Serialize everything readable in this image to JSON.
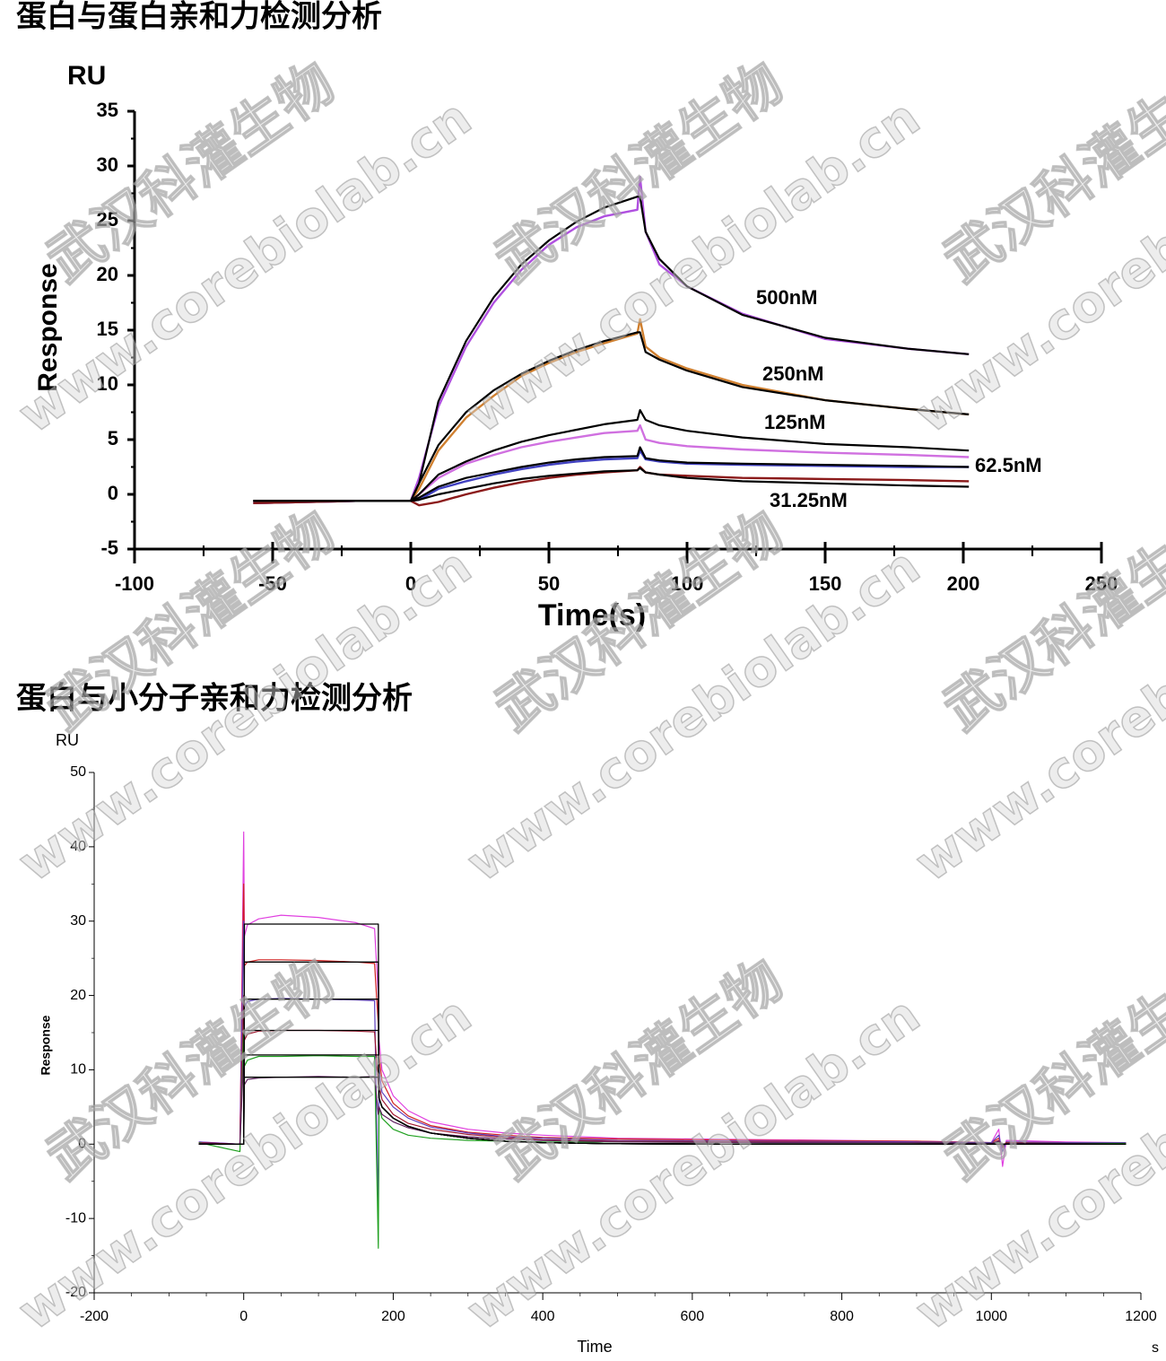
{
  "chart_data": [
    {
      "type": "line",
      "title": "蛋白与蛋白亲和力检测分析",
      "y_unit": "RU",
      "ylabel": "Response",
      "xlabel": "Time(s)",
      "xlim": [
        -100,
        250
      ],
      "xticks": [
        -100,
        -50,
        0,
        50,
        100,
        150,
        200,
        250
      ],
      "ylim": [
        -5,
        35
      ],
      "yticks": [
        -5,
        0,
        5,
        10,
        15,
        20,
        25,
        30,
        35
      ],
      "fit_color": "#000000",
      "x": [
        -57,
        -20,
        0,
        3,
        10,
        20,
        30,
        40,
        50,
        60,
        70,
        82,
        83,
        85,
        90,
        100,
        120,
        150,
        180,
        202
      ],
      "series": [
        {
          "name": "500nM",
          "color": "#b050e0",
          "values": [
            -0.8,
            -0.6,
            -0.6,
            1.5,
            8,
            13.5,
            17.5,
            20.5,
            22.8,
            24.4,
            25.4,
            26,
            29,
            24,
            21,
            19,
            16.5,
            14.2,
            13.3,
            12.8
          ],
          "fit_values": [
            -0.6,
            -0.6,
            -0.6,
            1,
            8.5,
            14,
            18,
            21,
            23.2,
            24.9,
            26.2,
            27.2,
            27.2,
            24,
            21.5,
            19,
            16.4,
            14.3,
            13.3,
            12.8
          ]
        },
        {
          "name": "250nM",
          "color": "#d08030",
          "values": [
            -0.8,
            -0.6,
            -0.6,
            0.5,
            4,
            7,
            9,
            10.8,
            12,
            13,
            13.8,
            14.7,
            16,
            13.5,
            12.5,
            11.5,
            10,
            8.6,
            7.8,
            7.3
          ],
          "fit_values": [
            -0.6,
            -0.6,
            -0.6,
            1,
            4.5,
            7.5,
            9.5,
            11,
            12.2,
            13.2,
            14,
            14.8,
            14.8,
            13,
            12.3,
            11.3,
            9.8,
            8.6,
            7.8,
            7.3
          ]
        },
        {
          "name": "125nM",
          "color": "#d070e0",
          "values": [
            -0.8,
            -0.6,
            -0.6,
            0,
            1.5,
            2.8,
            3.6,
            4.3,
            4.8,
            5.2,
            5.6,
            5.8,
            6.3,
            5,
            4.7,
            4.4,
            4.1,
            3.8,
            3.6,
            3.4
          ],
          "fit_values": [
            -0.6,
            -0.6,
            -0.6,
            0,
            1.8,
            3,
            4,
            4.8,
            5.4,
            5.9,
            6.4,
            6.8,
            7.7,
            6.8,
            6.3,
            5.8,
            5.2,
            4.6,
            4.3,
            4.0
          ]
        },
        {
          "name": "62.5nM",
          "color": "#4040c0",
          "values": [
            -0.8,
            -0.6,
            -0.6,
            -0.5,
            0.5,
            1.2,
            1.8,
            2.3,
            2.7,
            3,
            3.2,
            3.3,
            4,
            3.2,
            3,
            2.8,
            2.7,
            2.6,
            2.5,
            2.5
          ],
          "fit_values": [
            -0.6,
            -0.6,
            -0.6,
            -0.3,
            0.7,
            1.5,
            2,
            2.5,
            2.9,
            3.2,
            3.4,
            3.5,
            4.3,
            3.3,
            3.1,
            2.9,
            2.8,
            2.7,
            2.6,
            2.5
          ]
        },
        {
          "name": "31.25nM",
          "color": "#8b1a1a",
          "values": [
            -0.8,
            -0.6,
            -0.6,
            -1,
            -0.7,
            0,
            0.6,
            1.1,
            1.5,
            1.8,
            2,
            2.2,
            2.5,
            2,
            1.8,
            1.7,
            1.5,
            1.4,
            1.3,
            1.2
          ],
          "fit_values": [
            -0.6,
            -0.6,
            -0.6,
            -0.5,
            0,
            0.5,
            1,
            1.4,
            1.7,
            1.9,
            2.1,
            2.2,
            2.4,
            2,
            1.8,
            1.5,
            1.2,
            1,
            0.8,
            0.7
          ]
        }
      ]
    },
    {
      "type": "line",
      "title": "蛋白与小分子亲和力检测分析",
      "y_unit": "RU",
      "ylabel": "Response",
      "xlabel": "Time",
      "x_unit": "s",
      "xlim": [
        -200,
        1200
      ],
      "xticks": [
        -200,
        0,
        200,
        400,
        600,
        800,
        1000,
        1200
      ],
      "ylim": [
        -20,
        50
      ],
      "yticks": [
        -20,
        -10,
        0,
        10,
        20,
        30,
        40,
        50
      ],
      "fit_color": "#000000",
      "x": [
        -60,
        -5,
        0,
        1,
        5,
        20,
        50,
        100,
        150,
        175,
        180,
        181,
        185,
        200,
        220,
        250,
        300,
        350,
        400,
        500,
        700,
        900,
        1000,
        1010,
        1015,
        1020,
        1100,
        1180
      ],
      "series": [
        {
          "color": "#e040e0",
          "values": [
            0.3,
            0,
            42,
            28,
            29.5,
            30.3,
            30.8,
            30.5,
            29.8,
            29,
            20,
            14,
            10,
            6.5,
            4.5,
            3,
            2,
            1.5,
            1.2,
            0.8,
            0.6,
            0.4,
            0.2,
            2,
            -3,
            0.5,
            0.3,
            0.2
          ],
          "fit_values": [
            0,
            0,
            0,
            29.6,
            29.6,
            29.6,
            29.6,
            29.6,
            29.6,
            29.6,
            29.6,
            6.2,
            5,
            3.5,
            2.4,
            1.5,
            0.8,
            0.4,
            0.2,
            0.05,
            0,
            0,
            0,
            0,
            0,
            0,
            0,
            0
          ]
        },
        {
          "color": "#d02020",
          "values": [
            0.2,
            0,
            35,
            24,
            24.5,
            24.8,
            24.8,
            24.7,
            24.5,
            24.3,
            16,
            12,
            8.5,
            5.5,
            3.8,
            2.5,
            1.6,
            1.2,
            0.9,
            0.7,
            0.5,
            0.4,
            0.2,
            0.8,
            -0.5,
            0.3,
            0.2,
            0.2
          ],
          "fit_values": [
            0,
            0,
            0,
            24.5,
            24.5,
            24.5,
            24.5,
            24.5,
            24.5,
            24.5,
            24.5,
            6.2,
            5,
            3.5,
            2.4,
            1.5,
            0.8,
            0.4,
            0.2,
            0.05,
            0,
            0,
            0,
            0,
            0,
            0,
            0,
            0
          ]
        },
        {
          "color": "#6040c0",
          "values": [
            0.3,
            0,
            30,
            18.5,
            19.2,
            19.5,
            19.6,
            19.5,
            19.4,
            19.3,
            -10,
            10,
            7,
            5,
            3.5,
            2.3,
            1.5,
            1,
            0.8,
            0.5,
            0.4,
            0.3,
            0.2,
            1.2,
            -1,
            0.3,
            0.2,
            0.2
          ],
          "fit_values": [
            0,
            0,
            0,
            19.5,
            19.5,
            19.5,
            19.5,
            19.5,
            19.5,
            19.5,
            19.5,
            6.2,
            5,
            3.5,
            2.4,
            1.5,
            0.8,
            0.4,
            0.2,
            0.05,
            0,
            0,
            0,
            0,
            0,
            0,
            0,
            0
          ]
        },
        {
          "color": "#a01830",
          "values": [
            0.2,
            0,
            20,
            14,
            14.8,
            15.2,
            15.3,
            15.3,
            15.2,
            15.1,
            8,
            8,
            6,
            4,
            2.8,
            2,
            1.3,
            0.9,
            0.6,
            0.4,
            0.3,
            0.2,
            0.1,
            0.5,
            -0.3,
            0.2,
            0.1,
            0.1
          ],
          "fit_values": [
            0,
            0,
            0,
            15.3,
            15.3,
            15.3,
            15.3,
            15.3,
            15.3,
            15.3,
            15.3,
            6.2,
            5,
            3.5,
            2.4,
            1.5,
            0.8,
            0.4,
            0.2,
            0.05,
            0,
            0,
            0,
            0,
            0,
            0,
            0,
            0
          ]
        },
        {
          "color": "#20a020",
          "values": [
            0.2,
            -1,
            15,
            10.5,
            11.3,
            11.8,
            11.8,
            11.9,
            11.8,
            11.8,
            -14,
            5,
            3.5,
            2,
            1.2,
            0.8,
            0.5,
            0.4,
            0.3,
            0.3,
            0.2,
            0.2,
            0.1,
            0.3,
            -0.2,
            0.1,
            0.1,
            0.1
          ],
          "fit_values": [
            0,
            0,
            0,
            12,
            12,
            12,
            12,
            12,
            12,
            12,
            12,
            6.2,
            5,
            3.5,
            2.4,
            1.5,
            0.8,
            0.4,
            0.2,
            0.05,
            0,
            0,
            0,
            0,
            0,
            0,
            0,
            0
          ]
        },
        {
          "color": "#602060",
          "values": [
            0.1,
            0,
            12,
            8,
            8.7,
            8.9,
            9,
            9.1,
            9,
            9.1,
            4,
            5,
            4,
            3,
            2.2,
            1.5,
            1,
            0.7,
            0.5,
            0.3,
            0.2,
            0.2,
            0.1,
            0.4,
            -0.2,
            0.1,
            0.1,
            0
          ],
          "fit_values": [
            0,
            0,
            0,
            9,
            9,
            9,
            9,
            9,
            9,
            9,
            9,
            6.2,
            5,
            3.5,
            2.4,
            1.5,
            0.8,
            0.4,
            0.2,
            0.05,
            0,
            0,
            0,
            0,
            0,
            0,
            0,
            0
          ]
        }
      ]
    }
  ],
  "watermark": {
    "company": "武汉科灌生物",
    "url": "www.corebiolab.cn"
  }
}
